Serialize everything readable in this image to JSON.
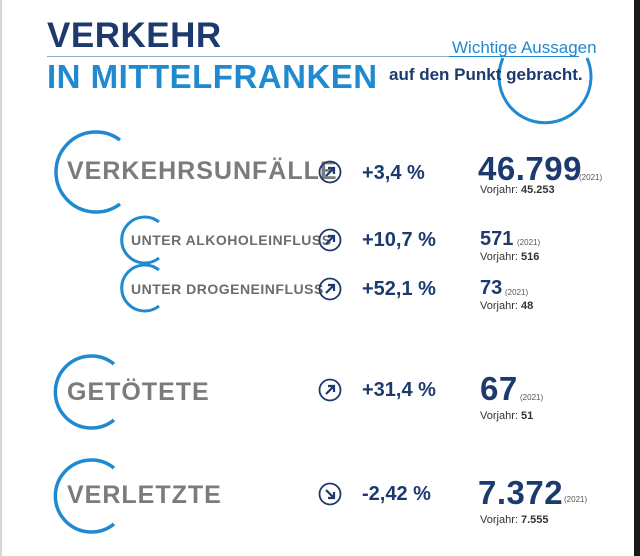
{
  "header": {
    "title_line1": "VERKEHR",
    "title_line2": "IN MITTELFRANKEN",
    "tagline_line1": "Wichtige Aussagen",
    "tagline_line2": "auf den Punkt gebracht."
  },
  "colors": {
    "navy": "#1d3a6e",
    "blue": "#1f8ad0",
    "gray": "#7b7b7b"
  },
  "rows": [
    {
      "label": "VERKEHRSUNFÄLLE",
      "trend_icon": "arrow-up-right-icon",
      "change": "+3,4 %",
      "value": "46.799",
      "year": "(2021)",
      "prev_label": "Vorjahr:",
      "prev_value": "45.253"
    },
    {
      "label": "UNTER ALKOHOLEINFLUSS",
      "trend_icon": "arrow-up-right-icon",
      "change": "+10,7 %",
      "value": "571",
      "year": "(2021)",
      "prev_label": "Vorjahr:",
      "prev_value": "516"
    },
    {
      "label": "UNTER DROGENEINFLUSS",
      "trend_icon": "arrow-up-right-icon",
      "change": "+52,1 %",
      "value": "73",
      "year": "(2021)",
      "prev_label": "Vorjahr:",
      "prev_value": "48"
    },
    {
      "label": "GETÖTETE",
      "trend_icon": "arrow-up-right-icon",
      "change": "+31,4 %",
      "value": "67",
      "year": "(2021)",
      "prev_label": "Vorjahr:",
      "prev_value": "51"
    },
    {
      "label": "VERLETZTE",
      "trend_icon": "arrow-down-right-icon",
      "change": "-2,42 %",
      "value": "7.372",
      "year": "(2021)",
      "prev_label": "Vorjahr:",
      "prev_value": "7.555"
    }
  ]
}
